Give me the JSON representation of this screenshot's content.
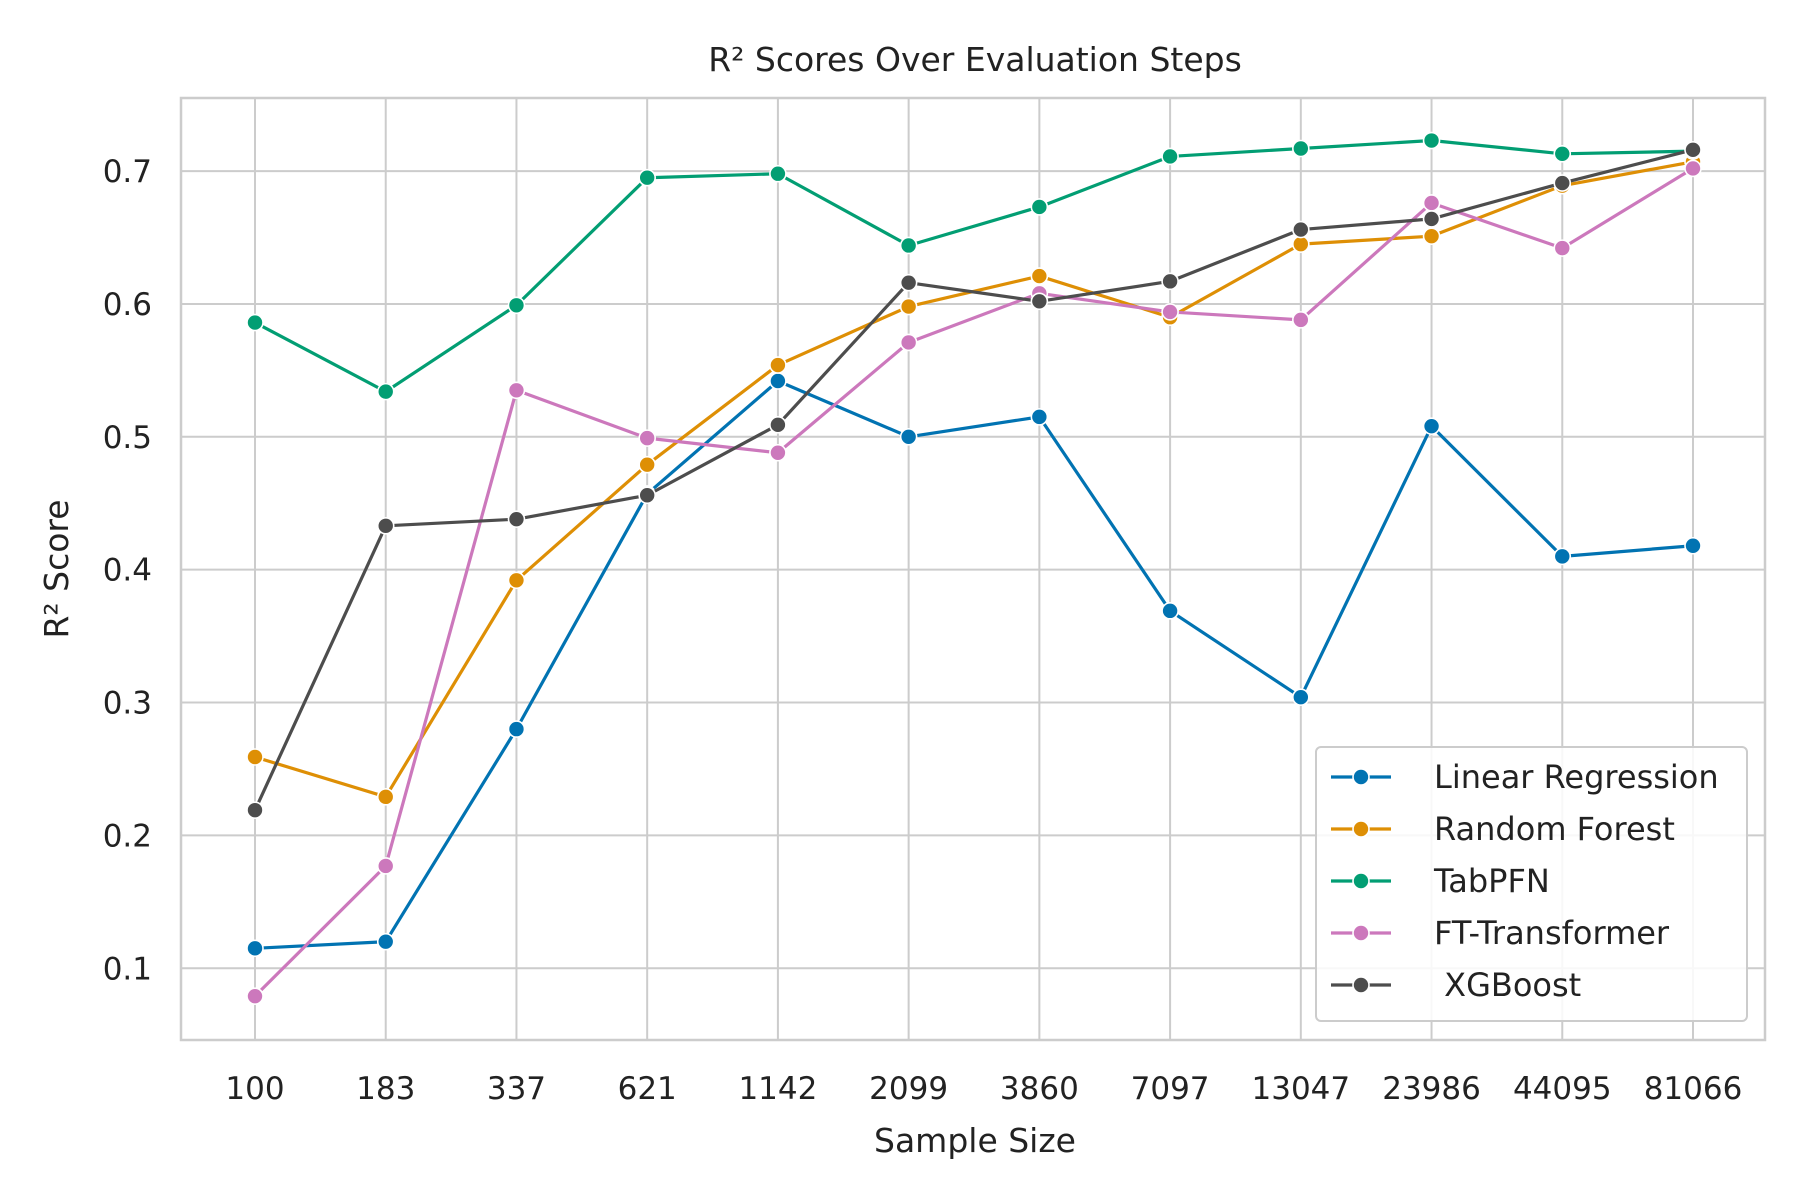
{
  "chart_data": {
    "type": "line",
    "title": "R² Scores Over Evaluation Steps",
    "xlabel": "Sample Size",
    "ylabel": "R² Score",
    "categories": [
      "100",
      "183",
      "337",
      "621",
      "1142",
      "2099",
      "3860",
      "7097",
      "13047",
      "23986",
      "44095",
      "81066"
    ],
    "ylim": [
      0.046,
      0.755
    ],
    "yticks": [
      0.1,
      0.2,
      0.3,
      0.4,
      0.5,
      0.6,
      0.7
    ],
    "ytick_labels": [
      "0.1",
      "0.2",
      "0.3",
      "0.4",
      "0.5",
      "0.6",
      "0.7"
    ],
    "grid": true,
    "legend_position": "lower-right",
    "series": [
      {
        "name": "Linear Regression",
        "color": "#0173b2",
        "values": [
          0.115,
          0.12,
          0.28,
          0.457,
          0.542,
          0.5,
          0.515,
          0.369,
          0.304,
          0.508,
          0.41,
          0.418
        ]
      },
      {
        "name": "Random Forest",
        "color": "#de8f05",
        "values": [
          0.259,
          0.229,
          0.392,
          0.479,
          0.554,
          0.598,
          0.621,
          0.59,
          0.645,
          0.651,
          0.689,
          0.707
        ]
      },
      {
        "name": "TabPFN",
        "color": "#029e73",
        "values": [
          0.586,
          0.534,
          0.599,
          0.695,
          0.698,
          0.644,
          0.673,
          0.711,
          0.717,
          0.723,
          0.713,
          0.715
        ]
      },
      {
        "name": "FT-Transformer",
        "color": "#cc78bc",
        "values": [
          0.079,
          0.177,
          0.535,
          0.499,
          0.488,
          0.571,
          0.608,
          0.594,
          0.588,
          0.676,
          0.642,
          0.702
        ]
      },
      {
        "name": " XGBoost",
        "color": "#4d4d4d",
        "values": [
          0.219,
          0.433,
          0.438,
          0.456,
          0.509,
          0.616,
          0.602,
          0.617,
          0.656,
          0.664,
          0.691,
          0.716
        ]
      }
    ]
  }
}
